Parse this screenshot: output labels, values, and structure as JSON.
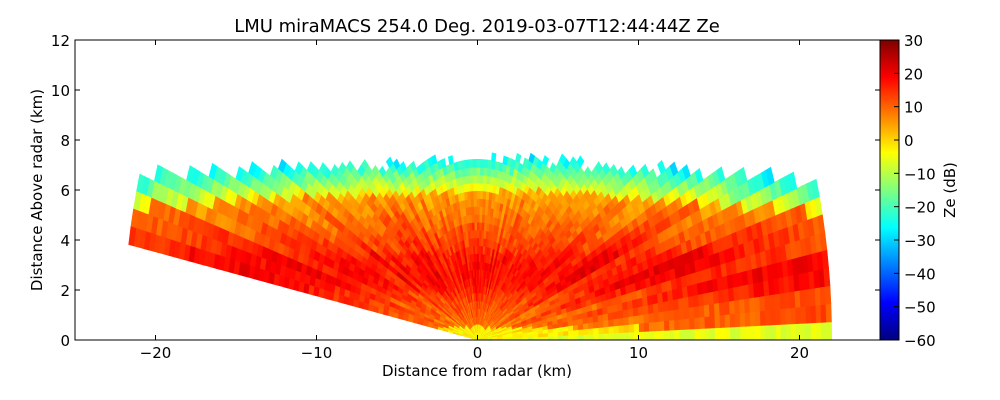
{
  "chart_data": {
    "type": "heatmap",
    "title": "LMU miraMACS 254.0 Deg. 2019-03-07T12:44:44Z  Ze",
    "xlabel": "Distance from radar (km)",
    "ylabel": "Distance Above radar  (km)",
    "xlim": [
      -25,
      25
    ],
    "ylim": [
      0,
      12
    ],
    "x_ticks": [
      -20,
      -10,
      0,
      10,
      20
    ],
    "x_tick_labels": [
      "−20",
      "−10",
      "0",
      "10",
      "20"
    ],
    "y_ticks": [
      0,
      2,
      4,
      6,
      8,
      10,
      12
    ],
    "y_tick_labels": [
      "0",
      "2",
      "4",
      "6",
      "8",
      "10",
      "12"
    ],
    "colorbar": {
      "label": "Ze (dB)",
      "range": [
        -60,
        30
      ],
      "ticks": [
        30,
        20,
        10,
        0,
        -10,
        -20,
        -30,
        -40,
        -50,
        -60
      ],
      "tick_labels": [
        "30",
        "20",
        "10",
        "0",
        "−10",
        "−20",
        "−30",
        "−40",
        "−50",
        "−60"
      ],
      "colormap": [
        "#00007f",
        "#0000ff",
        "#007fff",
        "#00ffff",
        "#7fff7f",
        "#ffff00",
        "#ff7f00",
        "#ff0000",
        "#7f0000"
      ]
    },
    "scan": {
      "type": "rhi",
      "azimuth_deg": 254.0,
      "max_range_km": 22,
      "elevation_start_deg": 0,
      "elevation_end_deg": 170,
      "echo_top_km": [
        [
          -21.5,
          6.3
        ],
        [
          -20,
          6.7
        ],
        [
          -18,
          6.6
        ],
        [
          -15,
          6.8
        ],
        [
          -12,
          6.9
        ],
        [
          -9,
          7.0
        ],
        [
          -6,
          7.0
        ],
        [
          -3,
          7.1
        ],
        [
          0,
          7.2
        ],
        [
          3,
          7.2
        ],
        [
          6,
          7.1
        ],
        [
          9,
          6.9
        ],
        [
          12,
          6.8
        ],
        [
          15,
          6.6
        ],
        [
          18,
          6.5
        ],
        [
          20,
          6.4
        ],
        [
          21.5,
          6.2
        ]
      ],
      "core_layer_km": [
        2.0,
        3.5
      ],
      "core_ze_dB": 18,
      "top_ze_dB": -25
    }
  }
}
